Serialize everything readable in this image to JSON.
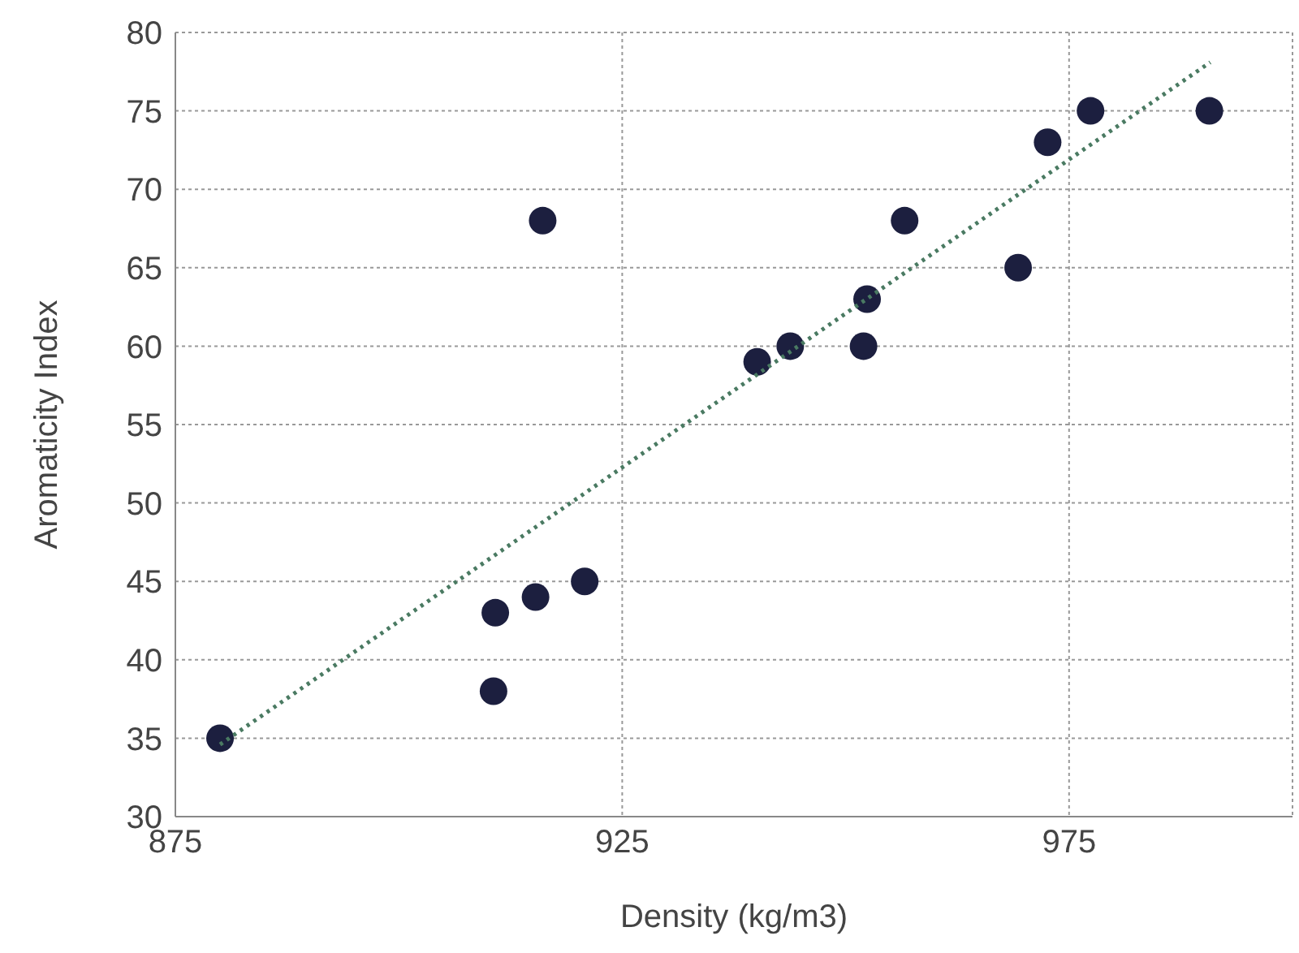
{
  "chart_data": {
    "type": "scatter",
    "xlabel": "Density (kg/m3)",
    "ylabel": "Aromaticity Index",
    "xlim": [
      875,
      1000
    ],
    "xticks": [
      875,
      925,
      975
    ],
    "ylim": [
      30,
      80
    ],
    "yticks": [
      30,
      35,
      40,
      45,
      50,
      55,
      60,
      65,
      70,
      75,
      80
    ],
    "grid": true,
    "marker": "circle",
    "series": [
      {
        "color": "#1c1f3f",
        "x": [
          880,
          910.8,
          910.6,
          915.3,
          920.8,
          916.1,
          940.1,
          943.8,
          952,
          952.4,
          956.6,
          969.3,
          972.6,
          977.4,
          990.7
        ],
        "values": [
          35,
          43,
          38,
          44,
          45,
          68,
          59,
          60,
          60,
          63,
          68,
          65,
          73,
          75,
          75
        ]
      },
      {
        "type": "line",
        "color": "#4a7a62",
        "line_style": "dotted",
        "marker": "none",
        "x": [
          880,
          990.8
        ],
        "values": [
          34.6,
          78.1
        ]
      }
    ]
  }
}
